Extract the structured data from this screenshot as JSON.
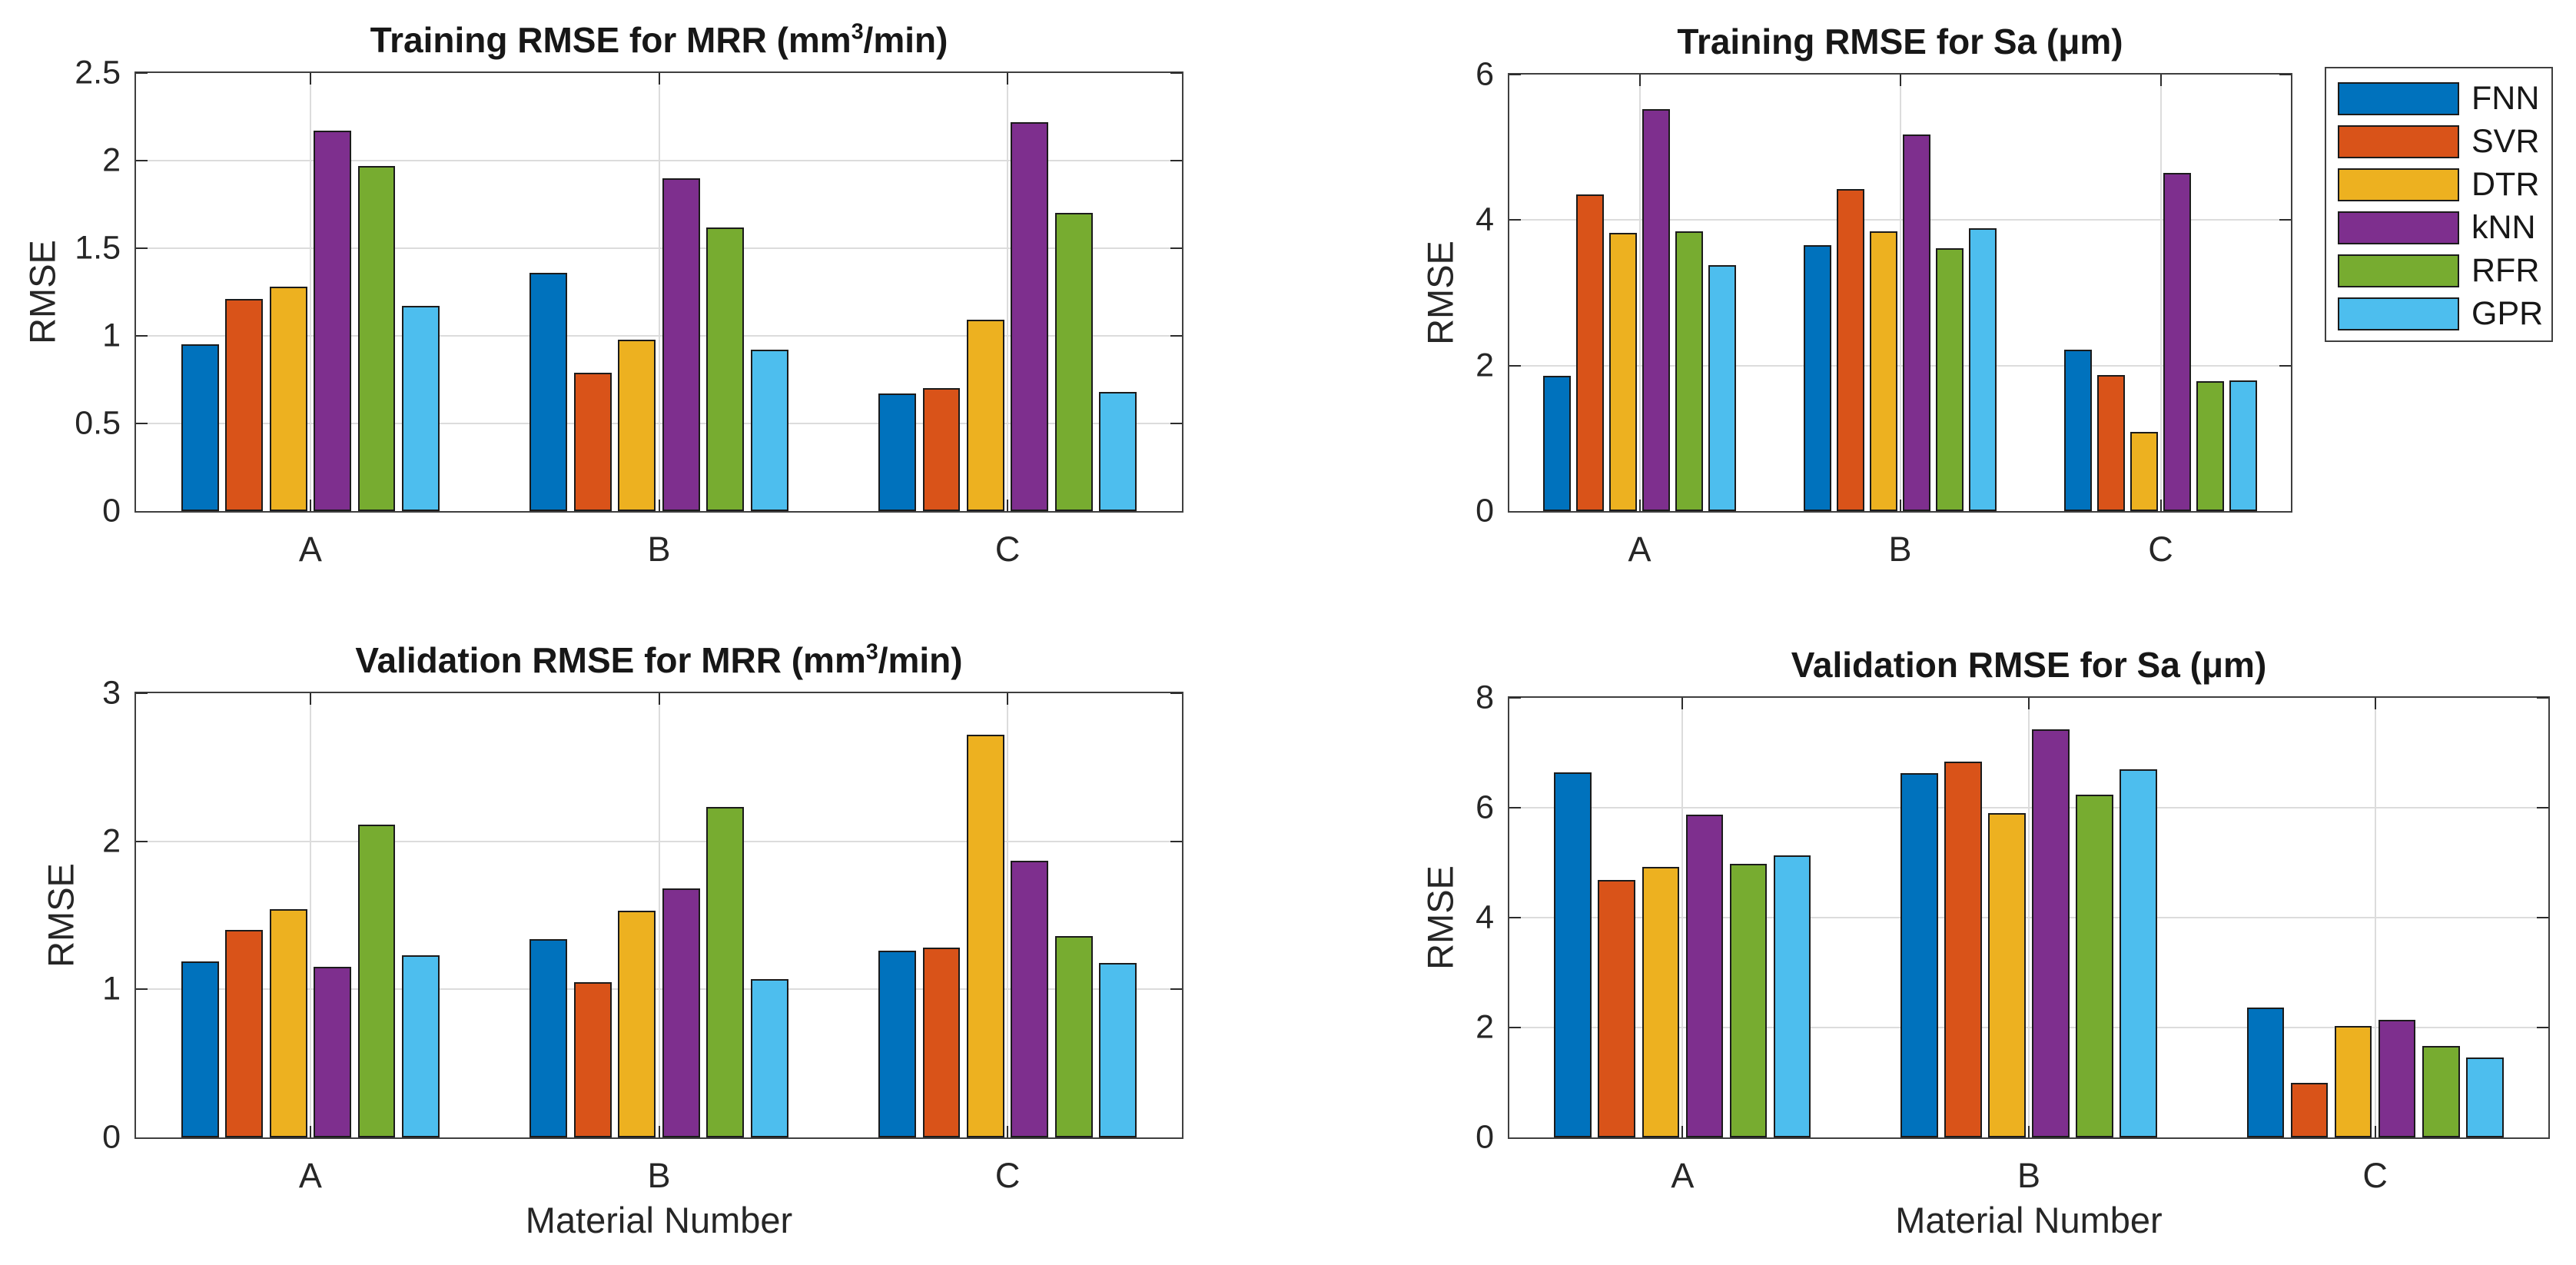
{
  "palette": {
    "FNN": "#0072BD",
    "SVR": "#D95319",
    "DTR": "#EDB120",
    "kNN": "#7E2F8E",
    "RFR": "#77AC30",
    "GPR": "#4DBEEE"
  },
  "legend": {
    "entries": [
      {
        "label": "FNN",
        "color": "#0072BD"
      },
      {
        "label": "SVR",
        "color": "#D95319"
      },
      {
        "label": "DTR",
        "color": "#EDB120"
      },
      {
        "label": "kNN",
        "color": "#7E2F8E"
      },
      {
        "label": "RFR",
        "color": "#77AC30"
      },
      {
        "label": "GPR",
        "color": "#4DBEEE"
      }
    ],
    "position": "outside-top-right"
  },
  "chart_data": [
    {
      "type": "bar",
      "title": "Training RMSE for MRR (mm³/min)",
      "title_parts": {
        "pre": "Training RMSE for MRR (mm",
        "sup": "3",
        "post": "/min)"
      },
      "ylabel": "RMSE",
      "xlabel": "",
      "categories": [
        "A",
        "B",
        "C"
      ],
      "ylim": [
        0,
        2.5
      ],
      "yticks": [
        0,
        0.5,
        1,
        1.5,
        2,
        2.5
      ],
      "grid": true,
      "series": [
        {
          "name": "FNN",
          "values": [
            0.95,
            1.36,
            0.67
          ]
        },
        {
          "name": "SVR",
          "values": [
            1.21,
            0.79,
            0.7
          ]
        },
        {
          "name": "DTR",
          "values": [
            1.28,
            0.98,
            1.09
          ]
        },
        {
          "name": "kNN",
          "values": [
            2.17,
            1.9,
            2.22
          ]
        },
        {
          "name": "RFR",
          "values": [
            1.97,
            1.62,
            1.7
          ]
        },
        {
          "name": "GPR",
          "values": [
            1.17,
            0.92,
            0.68
          ]
        }
      ]
    },
    {
      "type": "bar",
      "title": "Training RMSE for Sa (μm)",
      "title_parts": {
        "pre": "Training RMSE for Sa (μm)",
        "sup": "",
        "post": ""
      },
      "ylabel": "RMSE",
      "xlabel": "",
      "categories": [
        "A",
        "B",
        "C"
      ],
      "ylim": [
        0,
        6
      ],
      "yticks": [
        0,
        2,
        4,
        6
      ],
      "grid": true,
      "series": [
        {
          "name": "FNN",
          "values": [
            1.86,
            3.65,
            2.22
          ]
        },
        {
          "name": "SVR",
          "values": [
            4.35,
            4.43,
            1.87
          ]
        },
        {
          "name": "DTR",
          "values": [
            3.82,
            3.85,
            1.09
          ]
        },
        {
          "name": "kNN",
          "values": [
            5.53,
            5.18,
            4.65
          ]
        },
        {
          "name": "RFR",
          "values": [
            3.84,
            3.61,
            1.79
          ]
        },
        {
          "name": "GPR",
          "values": [
            3.38,
            3.89,
            1.8
          ]
        }
      ]
    },
    {
      "type": "bar",
      "title": "Validation RMSE for MRR (mm³/min)",
      "title_parts": {
        "pre": "Validation RMSE for MRR (mm",
        "sup": "3",
        "post": "/min)"
      },
      "ylabel": "RMSE",
      "xlabel": "Material Number",
      "categories": [
        "A",
        "B",
        "C"
      ],
      "ylim": [
        0,
        3
      ],
      "yticks": [
        0,
        1,
        2,
        3
      ],
      "grid": true,
      "series": [
        {
          "name": "FNN",
          "values": [
            1.19,
            1.34,
            1.26
          ]
        },
        {
          "name": "SVR",
          "values": [
            1.4,
            1.05,
            1.28
          ]
        },
        {
          "name": "DTR",
          "values": [
            1.54,
            1.53,
            2.72
          ]
        },
        {
          "name": "kNN",
          "values": [
            1.15,
            1.68,
            1.87
          ]
        },
        {
          "name": "RFR",
          "values": [
            2.11,
            2.23,
            1.36
          ]
        },
        {
          "name": "GPR",
          "values": [
            1.23,
            1.07,
            1.18
          ]
        }
      ]
    },
    {
      "type": "bar",
      "title": "Validation RMSE for Sa (μm)",
      "title_parts": {
        "pre": "Validation RMSE for Sa (μm)",
        "sup": "",
        "post": ""
      },
      "ylabel": "RMSE",
      "xlabel": "Material Number",
      "categories": [
        "A",
        "B",
        "C"
      ],
      "ylim": [
        0,
        8
      ],
      "yticks": [
        0,
        2,
        4,
        6,
        8
      ],
      "grid": true,
      "series": [
        {
          "name": "FNN",
          "values": [
            6.65,
            6.63,
            2.36
          ]
        },
        {
          "name": "SVR",
          "values": [
            4.69,
            6.84,
            1.0
          ]
        },
        {
          "name": "DTR",
          "values": [
            4.92,
            5.9,
            2.03
          ]
        },
        {
          "name": "kNN",
          "values": [
            5.88,
            7.42,
            2.14
          ]
        },
        {
          "name": "RFR",
          "values": [
            4.98,
            6.24,
            1.67
          ]
        },
        {
          "name": "GPR",
          "values": [
            5.13,
            6.7,
            1.46
          ]
        }
      ]
    }
  ]
}
